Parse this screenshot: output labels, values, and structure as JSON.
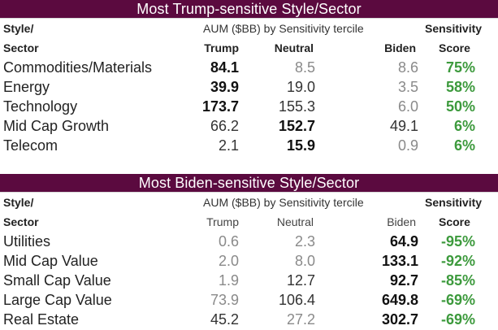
{
  "top": {
    "title": "Most Trump-sensitive Style/Sector",
    "header": {
      "style": "Style/",
      "group": "AUM ($BB) by Sensitivity tercile",
      "sensitivity": "Sensitivity",
      "sector": "Sector",
      "trump": "Trump",
      "neutral": "Neutral",
      "biden": "Biden",
      "score": "Score"
    },
    "rows": [
      {
        "name": "Commodities/Materials",
        "trump": "84.1",
        "neutral": "8.5",
        "biden": "8.6",
        "score": "75%"
      },
      {
        "name": "Energy",
        "trump": "39.9",
        "neutral": "19.0",
        "biden": "3.5",
        "score": "58%"
      },
      {
        "name": "Technology",
        "trump": "173.7",
        "neutral": "155.3",
        "biden": "6.0",
        "score": "50%"
      },
      {
        "name": "Mid Cap Growth",
        "trump": "66.2",
        "neutral": "152.7",
        "biden": "49.1",
        "score": "6%"
      },
      {
        "name": "Telecom",
        "trump": "2.1",
        "neutral": "15.9",
        "biden": "0.9",
        "score": "6%"
      }
    ]
  },
  "bottom": {
    "title": "Most Biden-sensitive Style/Sector",
    "header": {
      "style": "Style/",
      "group": "AUM ($BB) by Sensitivity tercile",
      "sensitivity": "Sensitivity",
      "sector": "Sector",
      "trump": "Trump",
      "neutral": "Neutral",
      "biden": "Biden",
      "score": "Score"
    },
    "rows": [
      {
        "name": "Utilities",
        "trump": "0.6",
        "neutral": "2.3",
        "biden": "64.9",
        "score": "-95%"
      },
      {
        "name": "Mid Cap Value",
        "trump": "2.0",
        "neutral": "8.0",
        "biden": "133.1",
        "score": "-92%"
      },
      {
        "name": "Small Cap Value",
        "trump": "1.9",
        "neutral": "12.7",
        "biden": "92.7",
        "score": "-85%"
      },
      {
        "name": "Large Cap Value",
        "trump": "73.9",
        "neutral": "106.4",
        "biden": "649.8",
        "score": "-69%"
      },
      {
        "name": "Real Estate",
        "trump": "45.2",
        "neutral": "27.2",
        "biden": "302.7",
        "score": "-69%"
      }
    ]
  },
  "colors": {
    "banner": "#5b0a3f",
    "score": "#3d9a3d"
  }
}
